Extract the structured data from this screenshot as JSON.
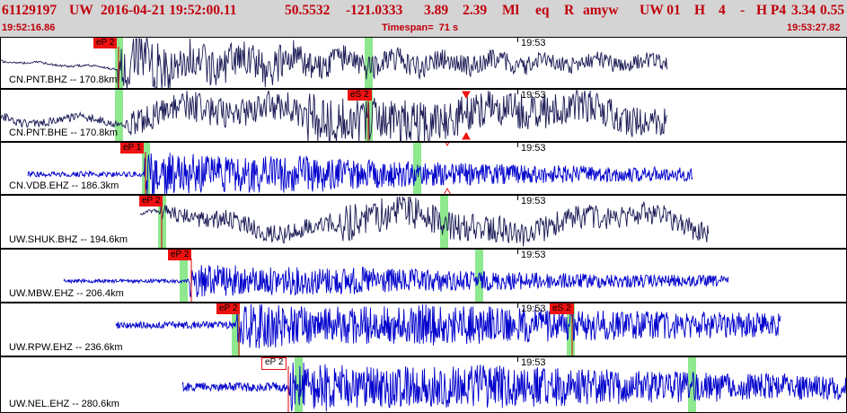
{
  "header": {
    "event_id": "61129197",
    "network": "UW",
    "origin": "2016-04-21 19:52:00.11",
    "latitude": "50.5532",
    "longitude": "-121.0333",
    "depth": "3.89",
    "magnitude": "2.39",
    "mag_type": "Ml",
    "event_type": "eq",
    "review": "R",
    "author": "amyw",
    "source": "UW 01",
    "quality": "H",
    "count": "4",
    "dash": "-",
    "gtype": "H P4",
    "value1": "3.34",
    "value2": "0.55",
    "start_time": "19:52:16.86",
    "timespan": "Timespan=  71 s",
    "end_time": "19:53:27.82"
  },
  "colors": {
    "header_text": "#c0000c",
    "header_bg": "#d4d4d4",
    "trace_dark": "#1a1a55",
    "trace_blue": "#0000cc",
    "pick_flag": "#ee1111",
    "pick_line": "#dd0000",
    "highlight": "#8ee88e",
    "marker": "#ee1111"
  },
  "panels": [
    {
      "label": "CN.PNT.BHZ -- 170.8km",
      "tick": "19:53",
      "trace_color": "dark",
      "picks": [
        {
          "label": "eP 2",
          "style": "filled"
        }
      ]
    },
    {
      "label": "CN.PNT.BHE -- 170.8km",
      "tick": "19:53",
      "trace_color": "dark",
      "picks": [
        {
          "label": "eS 2",
          "style": "filled"
        }
      ]
    },
    {
      "label": "CN.VDB.EHZ -- 186.3km",
      "tick": "19:53",
      "trace_color": "blue",
      "picks": [
        {
          "label": "eP 1",
          "style": "filled"
        }
      ]
    },
    {
      "label": "UW.SHUK.BHZ -- 194.6km",
      "tick": "19:53",
      "trace_color": "dark",
      "picks": [
        {
          "label": "eP 2",
          "style": "filled"
        }
      ]
    },
    {
      "label": "UW.MBW.EHZ -- 206.4km",
      "tick": "19:53",
      "trace_color": "blue",
      "picks": [
        {
          "label": "eP 2",
          "style": "filled"
        }
      ]
    },
    {
      "label": "UW.RPW.EHZ -- 236.6km",
      "tick": "19:53",
      "trace_color": "blue",
      "picks": [
        {
          "label": "eP 2",
          "style": "filled"
        },
        {
          "label": "eS 2",
          "style": "filled"
        }
      ]
    },
    {
      "label": "UW.NEL.EHZ -- 280.6km",
      "tick": "19:53",
      "trace_color": "blue",
      "picks": [
        {
          "label": "eP 2",
          "style": "outlined"
        }
      ]
    }
  ]
}
